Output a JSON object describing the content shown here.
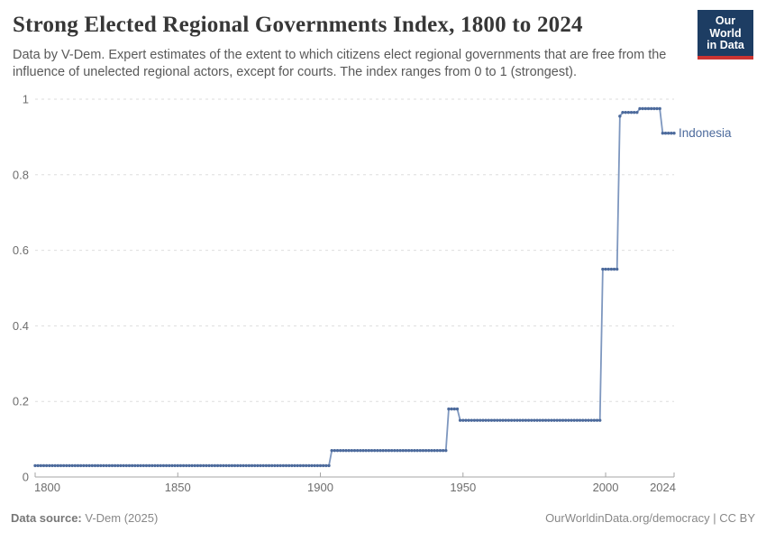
{
  "header": {
    "title": "Strong Elected Regional Governments Index, 1800 to 2024",
    "subtitle": "Data by V-Dem. Expert estimates of the extent to which citizens elect regional governments that are free from the influence of unelected regional actors, except for courts. The index ranges from 0 to 1 (strongest).",
    "logo": {
      "line1": "Our World",
      "line2": "in Data",
      "bg_color": "#1d3d63",
      "accent_color": "#cc3432"
    }
  },
  "chart_data": {
    "type": "line",
    "title": "Strong Elected Regional Governments Index, 1800 to 2024",
    "entity": "Indonesia",
    "xlabel": "",
    "ylabel": "",
    "xlim": [
      1800,
      2024
    ],
    "ylim": [
      0,
      1
    ],
    "xticks": [
      1800,
      1850,
      1900,
      1950,
      2000,
      2024
    ],
    "yticks": [
      0,
      0.2,
      0.4,
      0.6,
      0.8,
      1
    ],
    "grid": "horizontal-dashed",
    "legend_position": "end-of-line-label",
    "line_color": "#4c6a9c",
    "line_light_color": "#7e97bf",
    "grid_color": "#dedede",
    "axis_color": "#a5a5a5",
    "tick_label_color": "#6e6e6e",
    "series": [
      {
        "name": "Indonesia",
        "step_segments": [
          {
            "from": 1800,
            "to": 1903,
            "value": 0.03
          },
          {
            "from": 1904,
            "to": 1944,
            "value": 0.07
          },
          {
            "from": 1945,
            "to": 1948,
            "value": 0.18
          },
          {
            "from": 1949,
            "to": 1998,
            "value": 0.15
          },
          {
            "from": 1999,
            "to": 2004,
            "value": 0.55
          },
          {
            "from": 2005,
            "to": 2005,
            "value": 0.955
          },
          {
            "from": 2006,
            "to": 2011,
            "value": 0.965
          },
          {
            "from": 2012,
            "to": 2019,
            "value": 0.975
          },
          {
            "from": 2020,
            "to": 2024,
            "value": 0.91
          }
        ]
      }
    ]
  },
  "footer": {
    "source_label": "Data source:",
    "source_value": "V-Dem (2025)",
    "link": "OurWorldinData.org/democracy",
    "separator": "|",
    "license": "CC BY"
  }
}
